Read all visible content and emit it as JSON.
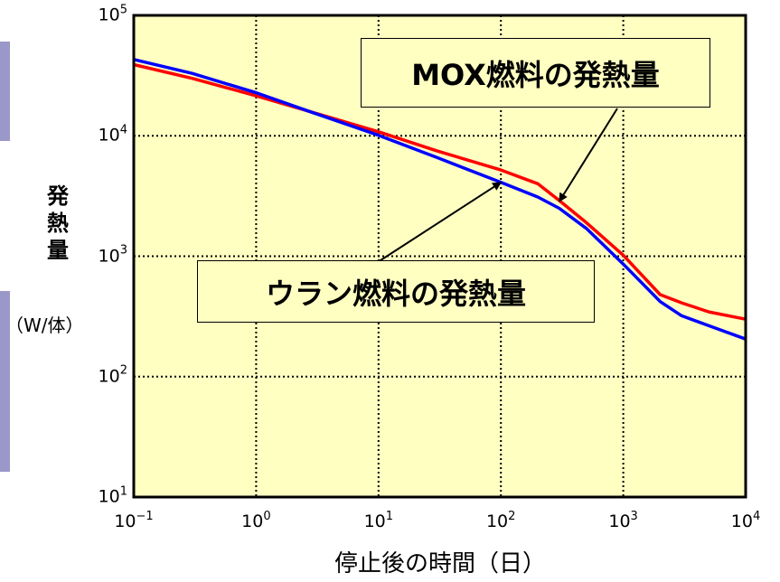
{
  "chart_data": {
    "type": "line",
    "x_scale": "log",
    "y_scale": "log",
    "xlim": [
      0.1,
      10000
    ],
    "ylim": [
      10,
      100000
    ],
    "grid": true,
    "x_ticks": [
      {
        "base": "10",
        "exp": "−1",
        "value": 0.1
      },
      {
        "base": "10",
        "exp": "0",
        "value": 1
      },
      {
        "base": "10",
        "exp": "1",
        "value": 10
      },
      {
        "base": "10",
        "exp": "2",
        "value": 100
      },
      {
        "base": "10",
        "exp": "3",
        "value": 1000
      },
      {
        "base": "10",
        "exp": "4",
        "value": 10000
      }
    ],
    "y_ticks": [
      {
        "base": "10",
        "exp": "1",
        "value": 10
      },
      {
        "base": "10",
        "exp": "2",
        "value": 100
      },
      {
        "base": "10",
        "exp": "3",
        "value": 1000
      },
      {
        "base": "10",
        "exp": "4",
        "value": 10000
      },
      {
        "base": "10",
        "exp": "5",
        "value": 100000
      }
    ],
    "xlabel": "停止後の時間（日）",
    "ylabel": "発熱量",
    "ylabel_unit": "（W/体）",
    "series": [
      {
        "name": "MOX燃料の発熱量",
        "color": "#ff0000",
        "x": [
          0.1,
          0.3,
          1,
          3,
          10,
          30,
          100,
          200,
          300,
          500,
          1000,
          2000,
          3000,
          5000,
          10000
        ],
        "y": [
          39000,
          30000,
          21500,
          15500,
          10800,
          7500,
          5200,
          4000,
          2900,
          1900,
          1020,
          480,
          410,
          345,
          300
        ]
      },
      {
        "name": "ウラン燃料の発熱量",
        "color": "#0000ff",
        "x": [
          0.1,
          0.3,
          1,
          3,
          10,
          30,
          100,
          200,
          300,
          500,
          1000,
          2000,
          3000,
          5000,
          10000
        ],
        "y": [
          43000,
          33000,
          22800,
          15400,
          10100,
          6600,
          4100,
          3100,
          2500,
          1700,
          860,
          420,
          320,
          265,
          205
        ]
      }
    ],
    "annotations": [
      {
        "text": "MOX燃料の発熱量",
        "target_x": 300,
        "target_y": 2850
      },
      {
        "text": "ウラン燃料の発熱量",
        "target_x": 100,
        "target_y": 4100
      }
    ],
    "colors": {
      "plot_bg": "#ffffc2",
      "callout_bg": "#ffffc2",
      "side_tab": "#9a97c9"
    }
  }
}
